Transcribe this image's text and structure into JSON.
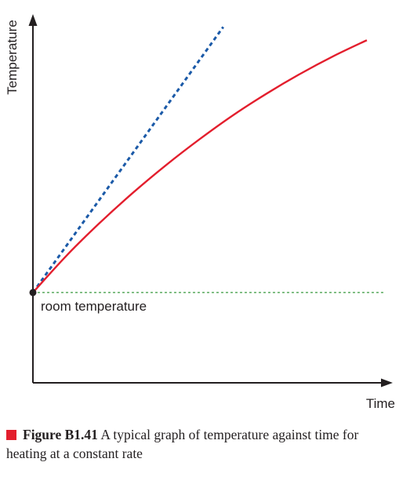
{
  "chart_data": {
    "type": "line",
    "xlabel": "Time",
    "ylabel": "Temperature",
    "annotation": "room temperature",
    "series": [
      {
        "style": "solid",
        "color": "#e31e2d",
        "points": [
          [
            0,
            0
          ],
          [
            0.1,
            0.138
          ],
          [
            0.2,
            0.262
          ],
          [
            0.3,
            0.376
          ],
          [
            0.4,
            0.481
          ],
          [
            0.5,
            0.578
          ],
          [
            0.6,
            0.668
          ],
          [
            0.7,
            0.749
          ],
          [
            0.8,
            0.823
          ],
          [
            0.9,
            0.89
          ],
          [
            1.0,
            0.95
          ]
        ]
      },
      {
        "style": "dashed",
        "color": "#1b5aa8",
        "points": [
          [
            0,
            0
          ],
          [
            0.57,
            1.0
          ]
        ]
      },
      {
        "style": "dotted",
        "color": "#3a9a3f",
        "points": [
          [
            0,
            0
          ],
          [
            1.05,
            0
          ]
        ]
      }
    ],
    "xlim": [
      0,
      1.08
    ],
    "ylim": [
      -0.34,
      1.06
    ],
    "marker_color": "#231f20"
  },
  "caption": {
    "label": "Figure B1.41",
    "text": "A typical graph of temperature against time for heating at a constant rate",
    "marker_color": "#e31e2d"
  }
}
